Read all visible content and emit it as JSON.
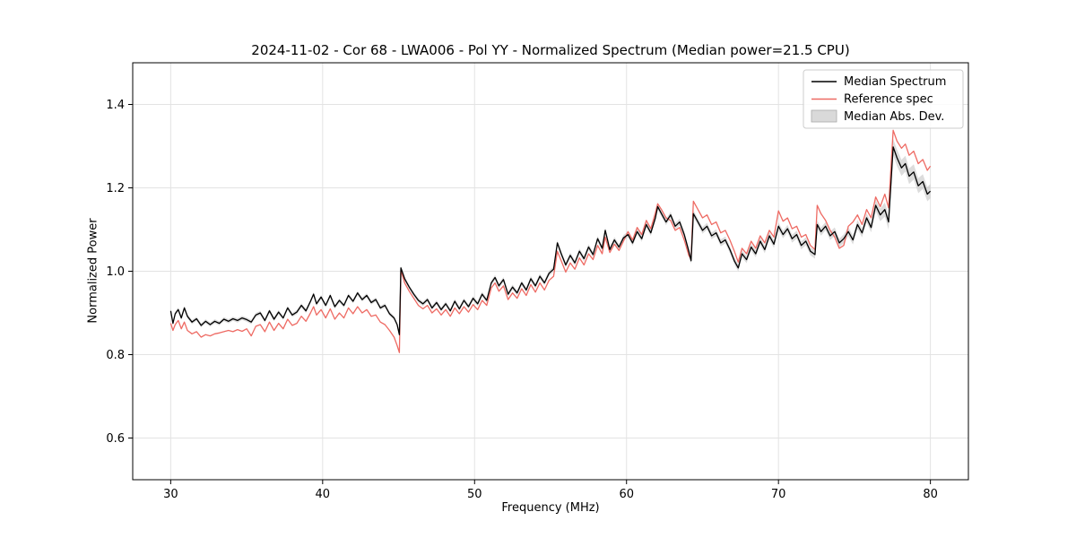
{
  "figure": {
    "background": "#ffffff"
  },
  "chart_data": {
    "type": "line",
    "title": "2024-11-02 - Cor 68 - LWA006 - Pol YY - Normalized Spectrum (Median power=21.5 CPU)",
    "xlabel": "Frequency (MHz)",
    "ylabel": "Normalized Power",
    "xlim": [
      27.5,
      82.5
    ],
    "ylim": [
      0.5,
      1.5
    ],
    "xticks": [
      30,
      40,
      50,
      60,
      70,
      80
    ],
    "yticks": [
      0.6,
      0.8,
      1.0,
      1.2,
      1.4
    ],
    "grid": true,
    "grid_color": "#e3e3e3",
    "legend_position": "upper right",
    "x": [
      30.0,
      30.15,
      30.3,
      30.5,
      30.7,
      30.9,
      31.1,
      31.4,
      31.7,
      32.0,
      32.3,
      32.6,
      32.9,
      33.2,
      33.5,
      33.8,
      34.1,
      34.4,
      34.7,
      35.0,
      35.3,
      35.6,
      35.9,
      36.2,
      36.5,
      36.8,
      37.1,
      37.4,
      37.7,
      38.0,
      38.3,
      38.6,
      38.9,
      39.2,
      39.4,
      39.6,
      39.9,
      40.2,
      40.5,
      40.8,
      41.1,
      41.4,
      41.7,
      42.0,
      42.3,
      42.6,
      42.9,
      43.2,
      43.5,
      43.8,
      44.1,
      44.4,
      44.7,
      44.9,
      45.05,
      45.15,
      45.4,
      45.7,
      46.0,
      46.3,
      46.6,
      46.9,
      47.2,
      47.5,
      47.8,
      48.1,
      48.4,
      48.7,
      49.0,
      49.3,
      49.6,
      49.9,
      50.2,
      50.5,
      50.8,
      51.1,
      51.35,
      51.6,
      51.9,
      52.2,
      52.5,
      52.8,
      53.1,
      53.4,
      53.7,
      54.0,
      54.3,
      54.6,
      54.9,
      55.2,
      55.45,
      55.7,
      56.0,
      56.3,
      56.6,
      56.9,
      57.2,
      57.5,
      57.8,
      58.1,
      58.4,
      58.6,
      58.9,
      59.2,
      59.5,
      59.8,
      60.1,
      60.4,
      60.7,
      61.0,
      61.3,
      61.6,
      61.9,
      62.05,
      62.3,
      62.6,
      62.9,
      63.2,
      63.5,
      63.8,
      64.1,
      64.25,
      64.4,
      64.7,
      65.0,
      65.3,
      65.6,
      65.9,
      66.2,
      66.5,
      66.8,
      67.1,
      67.35,
      67.6,
      67.9,
      68.2,
      68.5,
      68.8,
      69.1,
      69.4,
      69.7,
      70.0,
      70.3,
      70.6,
      70.9,
      71.2,
      71.5,
      71.8,
      72.1,
      72.4,
      72.55,
      72.8,
      73.1,
      73.4,
      73.7,
      74.0,
      74.3,
      74.6,
      74.9,
      75.2,
      75.5,
      75.8,
      76.1,
      76.4,
      76.7,
      77.0,
      77.25,
      77.55,
      77.8,
      78.1,
      78.35,
      78.6,
      78.9,
      79.2,
      79.5,
      79.8,
      80.0
    ],
    "series": [
      {
        "name": "Median Spectrum",
        "color": "#000000",
        "linewidth": 1.3,
        "values": [
          0.905,
          0.875,
          0.898,
          0.908,
          0.888,
          0.912,
          0.892,
          0.878,
          0.886,
          0.87,
          0.88,
          0.872,
          0.88,
          0.875,
          0.885,
          0.88,
          0.886,
          0.882,
          0.888,
          0.884,
          0.878,
          0.895,
          0.9,
          0.882,
          0.905,
          0.885,
          0.902,
          0.888,
          0.912,
          0.895,
          0.902,
          0.918,
          0.905,
          0.928,
          0.945,
          0.922,
          0.938,
          0.918,
          0.942,
          0.915,
          0.93,
          0.918,
          0.942,
          0.928,
          0.948,
          0.932,
          0.942,
          0.925,
          0.932,
          0.912,
          0.918,
          0.898,
          0.888,
          0.872,
          0.848,
          1.008,
          0.982,
          0.962,
          0.945,
          0.93,
          0.922,
          0.932,
          0.912,
          0.925,
          0.908,
          0.922,
          0.905,
          0.928,
          0.91,
          0.93,
          0.915,
          0.935,
          0.922,
          0.945,
          0.93,
          0.972,
          0.985,
          0.965,
          0.98,
          0.945,
          0.962,
          0.948,
          0.972,
          0.955,
          0.982,
          0.965,
          0.988,
          0.972,
          0.995,
          1.005,
          1.068,
          1.042,
          1.015,
          1.038,
          1.02,
          1.048,
          1.03,
          1.058,
          1.04,
          1.078,
          1.055,
          1.098,
          1.052,
          1.075,
          1.058,
          1.08,
          1.088,
          1.068,
          1.095,
          1.078,
          1.112,
          1.092,
          1.128,
          1.155,
          1.138,
          1.118,
          1.135,
          1.108,
          1.118,
          1.088,
          1.048,
          1.025,
          1.138,
          1.118,
          1.098,
          1.108,
          1.085,
          1.092,
          1.068,
          1.075,
          1.052,
          1.025,
          1.008,
          1.042,
          1.028,
          1.058,
          1.042,
          1.072,
          1.052,
          1.085,
          1.065,
          1.108,
          1.088,
          1.102,
          1.078,
          1.088,
          1.062,
          1.072,
          1.048,
          1.04,
          1.112,
          1.095,
          1.108,
          1.085,
          1.095,
          1.068,
          1.078,
          1.095,
          1.075,
          1.112,
          1.092,
          1.128,
          1.105,
          1.158,
          1.135,
          1.148,
          1.118,
          1.298,
          1.272,
          1.248,
          1.258,
          1.228,
          1.238,
          1.205,
          1.215,
          1.185,
          1.192
        ]
      },
      {
        "name": "Reference spec",
        "color": "#ee6a63",
        "linewidth": 1.3,
        "values": [
          0.875,
          0.858,
          0.872,
          0.882,
          0.862,
          0.878,
          0.858,
          0.85,
          0.855,
          0.842,
          0.848,
          0.845,
          0.85,
          0.852,
          0.855,
          0.858,
          0.855,
          0.86,
          0.856,
          0.862,
          0.845,
          0.868,
          0.872,
          0.855,
          0.878,
          0.858,
          0.875,
          0.862,
          0.885,
          0.87,
          0.875,
          0.892,
          0.88,
          0.9,
          0.915,
          0.895,
          0.908,
          0.888,
          0.91,
          0.885,
          0.9,
          0.888,
          0.912,
          0.898,
          0.915,
          0.9,
          0.908,
          0.892,
          0.895,
          0.878,
          0.872,
          0.858,
          0.842,
          0.822,
          0.805,
          1.002,
          0.972,
          0.952,
          0.935,
          0.918,
          0.91,
          0.918,
          0.9,
          0.91,
          0.895,
          0.908,
          0.892,
          0.912,
          0.898,
          0.915,
          0.902,
          0.92,
          0.908,
          0.93,
          0.918,
          0.96,
          0.972,
          0.952,
          0.965,
          0.932,
          0.948,
          0.935,
          0.958,
          0.942,
          0.968,
          0.95,
          0.972,
          0.955,
          0.978,
          0.988,
          1.048,
          1.025,
          0.998,
          1.02,
          1.005,
          1.032,
          1.015,
          1.042,
          1.028,
          1.062,
          1.042,
          1.082,
          1.045,
          1.065,
          1.05,
          1.072,
          1.095,
          1.075,
          1.105,
          1.088,
          1.122,
          1.102,
          1.14,
          1.162,
          1.148,
          1.128,
          1.122,
          1.098,
          1.105,
          1.075,
          1.038,
          1.028,
          1.168,
          1.148,
          1.128,
          1.135,
          1.112,
          1.118,
          1.092,
          1.098,
          1.075,
          1.048,
          1.022,
          1.055,
          1.042,
          1.072,
          1.055,
          1.085,
          1.068,
          1.098,
          1.082,
          1.145,
          1.12,
          1.128,
          1.102,
          1.108,
          1.082,
          1.088,
          1.062,
          1.052,
          1.158,
          1.138,
          1.122,
          1.098,
          1.082,
          1.055,
          1.062,
          1.108,
          1.118,
          1.135,
          1.112,
          1.148,
          1.128,
          1.178,
          1.155,
          1.185,
          1.152,
          1.338,
          1.312,
          1.295,
          1.305,
          1.278,
          1.288,
          1.258,
          1.268,
          1.242,
          1.252
        ]
      }
    ],
    "band": {
      "name": "Median Abs. Dev.",
      "color": "#bfbfbf",
      "opacity": 0.55,
      "around_series": "Median Spectrum",
      "halfwidth_points": [
        [
          30,
          0.005
        ],
        [
          45,
          0.005
        ],
        [
          60,
          0.007
        ],
        [
          70,
          0.009
        ],
        [
          76,
          0.011
        ],
        [
          77.5,
          0.02
        ],
        [
          80,
          0.017
        ]
      ]
    }
  }
}
